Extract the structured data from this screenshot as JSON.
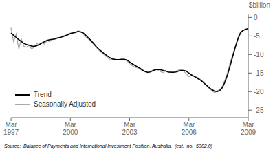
{
  "chart_data": {
    "type": "line",
    "ylabel": "$billion",
    "annotations": [
      "Source:  Balance of Payments and International Investment Position, Australia,  (cat.  no.  5302.0)"
    ],
    "categories": [
      "Mar\n1997",
      null,
      null,
      null,
      null,
      null,
      null,
      null,
      null,
      null,
      null,
      null,
      null,
      null,
      null,
      null,
      null,
      null,
      null,
      null,
      null,
      null,
      null,
      "Mar\n2000",
      null,
      null,
      null,
      null,
      null,
      null,
      null,
      null,
      null,
      null,
      null,
      null,
      null,
      null,
      null,
      null,
      null,
      null,
      null,
      null,
      null,
      null,
      "Mar\n2003",
      null,
      null,
      null,
      null,
      null,
      null,
      null,
      null,
      null,
      null,
      null,
      null,
      null,
      null,
      null,
      null,
      null,
      null,
      null,
      null,
      null,
      null,
      "Mar\n2006",
      null,
      null,
      null,
      null,
      null,
      null,
      null,
      null,
      null,
      null,
      null,
      null,
      null,
      null,
      null,
      null,
      null,
      null,
      null,
      null,
      null,
      null,
      "Mar\n2009"
    ],
    "series": [
      {
        "name": "Trend",
        "color": "#000000",
        "values": [
          -4.2,
          -4.8,
          -5.4,
          -6.0,
          -6.5,
          -7.0,
          -7.3,
          -7.5,
          -7.7,
          -7.8,
          -7.6,
          -7.3,
          -6.9,
          -6.5,
          -6.2,
          -6.0,
          -5.9,
          -5.8,
          -5.6,
          -5.4,
          -5.2,
          -5.0,
          -4.7,
          -4.4,
          -4.2,
          -4.0,
          -3.8,
          -3.9,
          -4.2,
          -4.8,
          -5.5,
          -6.2,
          -7.0,
          -7.8,
          -8.5,
          -9.1,
          -9.7,
          -10.2,
          -10.7,
          -11.1,
          -11.3,
          -11.4,
          -11.4,
          -11.3,
          -11.3,
          -11.5,
          -12.0,
          -12.5,
          -12.9,
          -13.3,
          -13.7,
          -14.2,
          -14.6,
          -14.8,
          -14.7,
          -14.4,
          -14.1,
          -14.0,
          -14.1,
          -14.3,
          -14.5,
          -14.7,
          -14.8,
          -14.8,
          -14.7,
          -14.5,
          -14.3,
          -14.3,
          -14.5,
          -15.0,
          -15.5,
          -15.9,
          -16.3,
          -16.7,
          -17.2,
          -17.8,
          -18.4,
          -19.0,
          -19.5,
          -19.9,
          -20.0,
          -19.7,
          -18.9,
          -17.4,
          -15.4,
          -13.0,
          -10.5,
          -8.0,
          -5.8,
          -4.2,
          -3.5,
          -3.2,
          -3.0
        ]
      },
      {
        "name": "Seasonally Adjusted",
        "color": "#aaaaaa",
        "values": [
          -2.8,
          -6.5,
          -4.5,
          -8.5,
          -5.8,
          -7.8,
          -8.0,
          -7.5,
          -8.5,
          -8.0,
          -7.0,
          -7.4,
          -6.8,
          -7.2,
          -6.2,
          -6.5,
          -6.0,
          -5.8,
          -5.4,
          -5.5,
          -5.0,
          -4.8,
          -4.5,
          -4.2,
          -4.0,
          -4.2,
          -3.6,
          -3.8,
          -4.5,
          -5.2,
          -5.8,
          -6.5,
          -7.2,
          -8.0,
          -8.8,
          -9.4,
          -10.0,
          -10.6,
          -11.2,
          -11.5,
          -11.2,
          -11.5,
          -11.3,
          -11.2,
          -11.4,
          -11.8,
          -12.4,
          -13.0,
          -13.4,
          -13.6,
          -13.9,
          -14.4,
          -14.7,
          -14.9,
          -14.6,
          -14.2,
          -13.9,
          -14.3,
          -14.6,
          -14.9,
          -14.3,
          -14.9,
          -14.6,
          -14.7,
          -14.5,
          -14.2,
          -14.0,
          -14.5,
          -15.2,
          -16.0,
          -15.5,
          -15.8,
          -16.0,
          -16.5,
          -17.0,
          -17.8,
          -18.5,
          -19.2,
          -19.8,
          -20.3,
          -19.8,
          -19.5,
          -18.5,
          -16.8,
          -14.8,
          -12.2,
          -10.0,
          -7.8,
          -5.5,
          -3.9,
          -3.5,
          -3.2,
          -3.0
        ]
      }
    ],
    "ylim": [
      -27,
      1
    ],
    "yticks": [
      0,
      -5,
      -10,
      -15,
      -20,
      -25
    ],
    "grid": false,
    "legend": "lower left"
  }
}
